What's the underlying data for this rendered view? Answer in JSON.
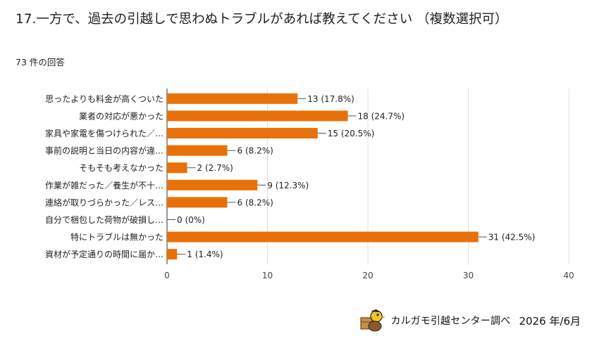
{
  "question": {
    "title": "17.一方で、過去の引越しで思わぬトラブルがあれば教えてください （複数選択可）",
    "responses": "73 件の回答"
  },
  "chart_data": {
    "type": "bar",
    "orientation": "horizontal",
    "categories": [
      "思ったよりも料金が高くついた",
      "業者の対応が悪かった",
      "家具や家電を傷つけられた／…",
      "事前の説明と当日の内容が違…",
      "そもそも考えなかった",
      "作業が雑だった／養生が不十…",
      "連絡が取りづらかった／レス…",
      "自分で梱包した荷物が破損し…",
      "特にトラブルは無かった",
      "資材が予定通りの時間に届か…"
    ],
    "values": [
      13,
      18,
      15,
      6,
      2,
      9,
      6,
      0,
      31,
      1
    ],
    "data_labels": [
      "13 (17.8%)",
      "18 (24.7%)",
      "15 (20.5%)",
      "6 (8.2%)",
      "2 (2.7%)",
      "9 (12.3%)",
      "6 (8.2%)",
      "0 (0%)",
      "31 (42.5%)",
      "1 (1.4%)"
    ],
    "xlim": [
      0,
      40
    ],
    "xticks": [
      0,
      10,
      20,
      30,
      40
    ],
    "grid": true,
    "bar_color": "#e8710a"
  },
  "footer": {
    "credit": "カルガモ引越センター調べ",
    "date": "2026 年/6月",
    "mascot_icon": "duck-mascot-icon"
  }
}
